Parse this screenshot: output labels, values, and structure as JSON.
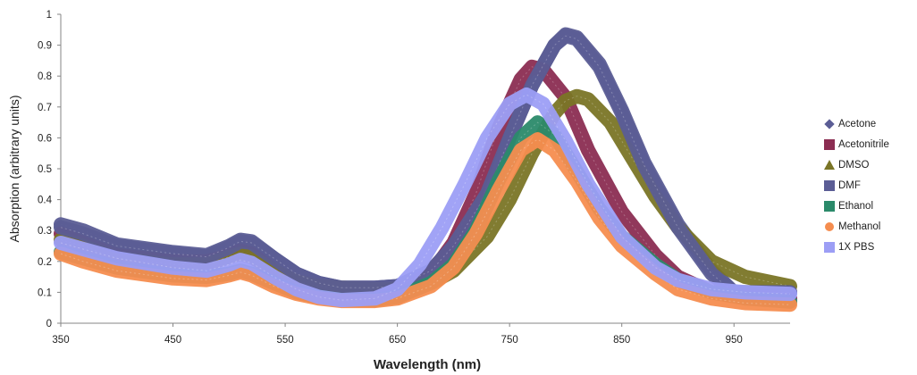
{
  "chart_data": {
    "type": "line",
    "xlabel": "Wavelength (nm)",
    "ylabel": "Absorption (arbitrary units)",
    "xlim": [
      350,
      1000
    ],
    "ylim": [
      0,
      1
    ],
    "xticks": [
      350,
      450,
      550,
      650,
      750,
      850,
      950
    ],
    "yticks": [
      0,
      0.1,
      0.2,
      0.3,
      0.4,
      0.5,
      0.6,
      0.7,
      0.8,
      0.9,
      1
    ],
    "ytick_labels": [
      "0",
      "0.1",
      "0.2",
      "0.3",
      "0.4",
      "0.5",
      "0.6",
      "0.7",
      "0.8",
      "0.9",
      "1"
    ],
    "grid": false,
    "legend_position": "right",
    "series": [
      {
        "name": "Acetone",
        "color": "#5b5d95",
        "marker": "diamond",
        "points": [
          [
            350,
            0.32
          ],
          [
            370,
            0.3
          ],
          [
            400,
            0.255
          ],
          [
            450,
            0.23
          ],
          [
            480,
            0.22
          ],
          [
            500,
            0.25
          ],
          [
            510,
            0.27
          ],
          [
            520,
            0.265
          ],
          [
            540,
            0.21
          ],
          [
            560,
            0.16
          ],
          [
            580,
            0.13
          ],
          [
            600,
            0.115
          ],
          [
            630,
            0.115
          ],
          [
            650,
            0.12
          ],
          [
            680,
            0.17
          ],
          [
            700,
            0.25
          ],
          [
            730,
            0.42
          ],
          [
            750,
            0.6
          ],
          [
            770,
            0.77
          ],
          [
            790,
            0.9
          ],
          [
            800,
            0.935
          ],
          [
            810,
            0.925
          ],
          [
            830,
            0.84
          ],
          [
            850,
            0.69
          ],
          [
            870,
            0.52
          ],
          [
            900,
            0.32
          ],
          [
            930,
            0.17
          ],
          [
            950,
            0.1
          ],
          [
            980,
            0.1
          ],
          [
            1000,
            0.1
          ]
        ]
      },
      {
        "name": "Acetonitrile",
        "color": "#8b2d52",
        "marker": "square",
        "points": [
          [
            350,
            0.29
          ],
          [
            370,
            0.26
          ],
          [
            400,
            0.22
          ],
          [
            450,
            0.2
          ],
          [
            480,
            0.2
          ],
          [
            500,
            0.22
          ],
          [
            510,
            0.235
          ],
          [
            520,
            0.225
          ],
          [
            540,
            0.17
          ],
          [
            560,
            0.12
          ],
          [
            580,
            0.095
          ],
          [
            600,
            0.085
          ],
          [
            630,
            0.09
          ],
          [
            650,
            0.1
          ],
          [
            680,
            0.16
          ],
          [
            700,
            0.26
          ],
          [
            720,
            0.42
          ],
          [
            740,
            0.63
          ],
          [
            760,
            0.79
          ],
          [
            770,
            0.83
          ],
          [
            780,
            0.82
          ],
          [
            800,
            0.73
          ],
          [
            820,
            0.56
          ],
          [
            850,
            0.36
          ],
          [
            880,
            0.22
          ],
          [
            900,
            0.15
          ],
          [
            930,
            0.1
          ],
          [
            960,
            0.09
          ],
          [
            1000,
            0.08
          ]
        ]
      },
      {
        "name": "DMSO",
        "color": "#7a7526",
        "marker": "triangle",
        "points": [
          [
            350,
            0.27
          ],
          [
            370,
            0.25
          ],
          [
            400,
            0.21
          ],
          [
            450,
            0.19
          ],
          [
            480,
            0.19
          ],
          [
            500,
            0.215
          ],
          [
            510,
            0.225
          ],
          [
            520,
            0.215
          ],
          [
            540,
            0.17
          ],
          [
            560,
            0.135
          ],
          [
            580,
            0.12
          ],
          [
            600,
            0.115
          ],
          [
            630,
            0.11
          ],
          [
            650,
            0.11
          ],
          [
            680,
            0.13
          ],
          [
            700,
            0.17
          ],
          [
            730,
            0.28
          ],
          [
            750,
            0.4
          ],
          [
            770,
            0.55
          ],
          [
            790,
            0.68
          ],
          [
            800,
            0.72
          ],
          [
            810,
            0.735
          ],
          [
            820,
            0.725
          ],
          [
            840,
            0.65
          ],
          [
            860,
            0.53
          ],
          [
            880,
            0.41
          ],
          [
            900,
            0.31
          ],
          [
            930,
            0.2
          ],
          [
            960,
            0.15
          ],
          [
            1000,
            0.12
          ]
        ]
      },
      {
        "name": "DMF",
        "color": "#5b5d95",
        "marker": "square",
        "points": [
          [
            350,
            0.31
          ],
          [
            370,
            0.29
          ],
          [
            400,
            0.25
          ],
          [
            450,
            0.225
          ],
          [
            480,
            0.215
          ],
          [
            500,
            0.245
          ],
          [
            510,
            0.265
          ],
          [
            520,
            0.26
          ],
          [
            540,
            0.21
          ],
          [
            560,
            0.16
          ],
          [
            580,
            0.13
          ],
          [
            600,
            0.115
          ],
          [
            630,
            0.115
          ],
          [
            650,
            0.12
          ],
          [
            680,
            0.17
          ],
          [
            700,
            0.25
          ],
          [
            730,
            0.42
          ],
          [
            750,
            0.6
          ],
          [
            770,
            0.77
          ],
          [
            790,
            0.9
          ],
          [
            800,
            0.93
          ],
          [
            810,
            0.92
          ],
          [
            830,
            0.83
          ],
          [
            850,
            0.68
          ],
          [
            870,
            0.51
          ],
          [
            900,
            0.31
          ],
          [
            930,
            0.16
          ],
          [
            950,
            0.1
          ],
          [
            980,
            0.1
          ],
          [
            1000,
            0.1
          ]
        ]
      },
      {
        "name": "Ethanol",
        "color": "#2b8a6a",
        "marker": "square",
        "points": [
          [
            350,
            0.23
          ],
          [
            370,
            0.21
          ],
          [
            400,
            0.18
          ],
          [
            450,
            0.155
          ],
          [
            480,
            0.15
          ],
          [
            500,
            0.16
          ],
          [
            510,
            0.17
          ],
          [
            520,
            0.16
          ],
          [
            540,
            0.13
          ],
          [
            560,
            0.1
          ],
          [
            580,
            0.085
          ],
          [
            600,
            0.075
          ],
          [
            630,
            0.075
          ],
          [
            650,
            0.085
          ],
          [
            680,
            0.13
          ],
          [
            700,
            0.19
          ],
          [
            720,
            0.3
          ],
          [
            740,
            0.46
          ],
          [
            760,
            0.6
          ],
          [
            775,
            0.65
          ],
          [
            790,
            0.61
          ],
          [
            810,
            0.49
          ],
          [
            830,
            0.37
          ],
          [
            850,
            0.28
          ],
          [
            880,
            0.19
          ],
          [
            900,
            0.14
          ],
          [
            930,
            0.1
          ],
          [
            960,
            0.08
          ],
          [
            1000,
            0.07
          ]
        ]
      },
      {
        "name": "Methanol",
        "color": "#f58d4f",
        "marker": "circle",
        "points": [
          [
            350,
            0.225
          ],
          [
            370,
            0.2
          ],
          [
            400,
            0.17
          ],
          [
            450,
            0.145
          ],
          [
            480,
            0.14
          ],
          [
            500,
            0.155
          ],
          [
            510,
            0.165
          ],
          [
            520,
            0.155
          ],
          [
            540,
            0.12
          ],
          [
            560,
            0.095
          ],
          [
            580,
            0.08
          ],
          [
            600,
            0.072
          ],
          [
            630,
            0.072
          ],
          [
            650,
            0.08
          ],
          [
            680,
            0.12
          ],
          [
            700,
            0.18
          ],
          [
            720,
            0.29
          ],
          [
            740,
            0.43
          ],
          [
            760,
            0.56
          ],
          [
            775,
            0.595
          ],
          [
            790,
            0.56
          ],
          [
            810,
            0.46
          ],
          [
            830,
            0.34
          ],
          [
            850,
            0.25
          ],
          [
            880,
            0.16
          ],
          [
            900,
            0.11
          ],
          [
            930,
            0.08
          ],
          [
            960,
            0.065
          ],
          [
            1000,
            0.06
          ]
        ]
      },
      {
        "name": "1X PBS",
        "color": "#9c9ef5",
        "marker": "square",
        "points": [
          [
            350,
            0.26
          ],
          [
            370,
            0.24
          ],
          [
            400,
            0.21
          ],
          [
            450,
            0.18
          ],
          [
            480,
            0.17
          ],
          [
            500,
            0.19
          ],
          [
            510,
            0.205
          ],
          [
            520,
            0.195
          ],
          [
            540,
            0.15
          ],
          [
            560,
            0.11
          ],
          [
            580,
            0.085
          ],
          [
            600,
            0.075
          ],
          [
            630,
            0.08
          ],
          [
            650,
            0.11
          ],
          [
            670,
            0.19
          ],
          [
            690,
            0.31
          ],
          [
            710,
            0.45
          ],
          [
            730,
            0.6
          ],
          [
            750,
            0.71
          ],
          [
            765,
            0.74
          ],
          [
            780,
            0.71
          ],
          [
            800,
            0.59
          ],
          [
            820,
            0.45
          ],
          [
            850,
            0.28
          ],
          [
            880,
            0.18
          ],
          [
            900,
            0.14
          ],
          [
            930,
            0.11
          ],
          [
            960,
            0.1
          ],
          [
            1000,
            0.095
          ]
        ]
      }
    ]
  }
}
